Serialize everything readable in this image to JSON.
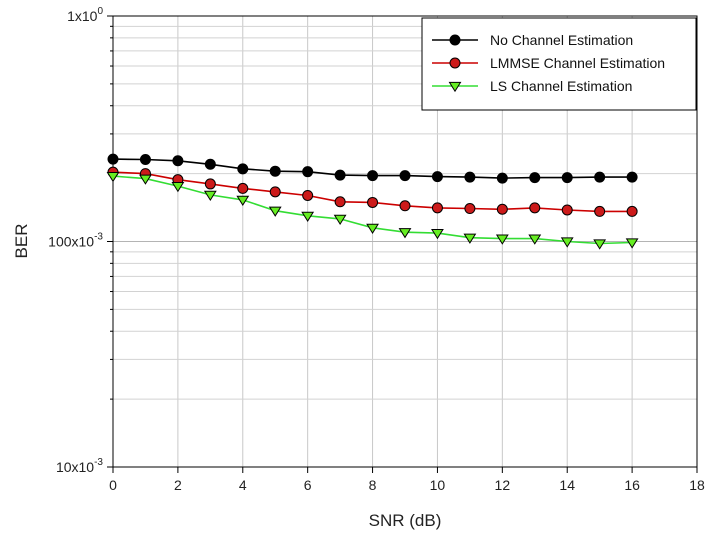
{
  "chart_data": {
    "type": "line",
    "title": "",
    "xlabel": "SNR (dB)",
    "ylabel": "BER",
    "xlim": [
      0,
      18
    ],
    "ylim": [
      0.01,
      1
    ],
    "y_scale": "log",
    "grid": true,
    "legend_position": "top-right",
    "x_ticks": [
      0,
      2,
      4,
      6,
      8,
      10,
      12,
      14,
      16,
      18
    ],
    "x_tick_labels": [
      "0",
      "2",
      "4",
      "6",
      "8",
      "10",
      "12",
      "14",
      "16",
      "18"
    ],
    "y_tick_labels": [
      {
        "value": 1,
        "mantissa": "1x10",
        "exp": "0"
      },
      {
        "value": 0.1,
        "mantissa": "100x10",
        "exp": "-3"
      },
      {
        "value": 0.01,
        "mantissa": "10x10",
        "exp": "-3"
      }
    ],
    "x": [
      0,
      1,
      2,
      3,
      4,
      5,
      6,
      7,
      8,
      9,
      10,
      11,
      12,
      13,
      14,
      15,
      16
    ],
    "series": [
      {
        "name": "No Channel Estimation",
        "color": "#000000",
        "fill": "#000000",
        "marker": "circle",
        "values": [
          0.232,
          0.231,
          0.228,
          0.22,
          0.21,
          0.205,
          0.204,
          0.197,
          0.196,
          0.196,
          0.194,
          0.193,
          0.191,
          0.192,
          0.192,
          0.193,
          0.193
        ]
      },
      {
        "name": "LMMSE Channel Estimation",
        "color": "#cc0000",
        "fill": "#cc1a1a",
        "marker": "circle",
        "values": [
          0.203,
          0.2,
          0.188,
          0.18,
          0.172,
          0.166,
          0.16,
          0.15,
          0.149,
          0.144,
          0.141,
          0.14,
          0.139,
          0.141,
          0.138,
          0.136,
          0.136
        ]
      },
      {
        "name": "LS Channel Estimation",
        "color": "#33dd33",
        "fill": "#66ee22",
        "marker": "triangle-down",
        "values": [
          0.195,
          0.19,
          0.176,
          0.161,
          0.153,
          0.137,
          0.13,
          0.126,
          0.115,
          0.11,
          0.109,
          0.104,
          0.103,
          0.103,
          0.1,
          0.098,
          0.099
        ]
      }
    ]
  }
}
